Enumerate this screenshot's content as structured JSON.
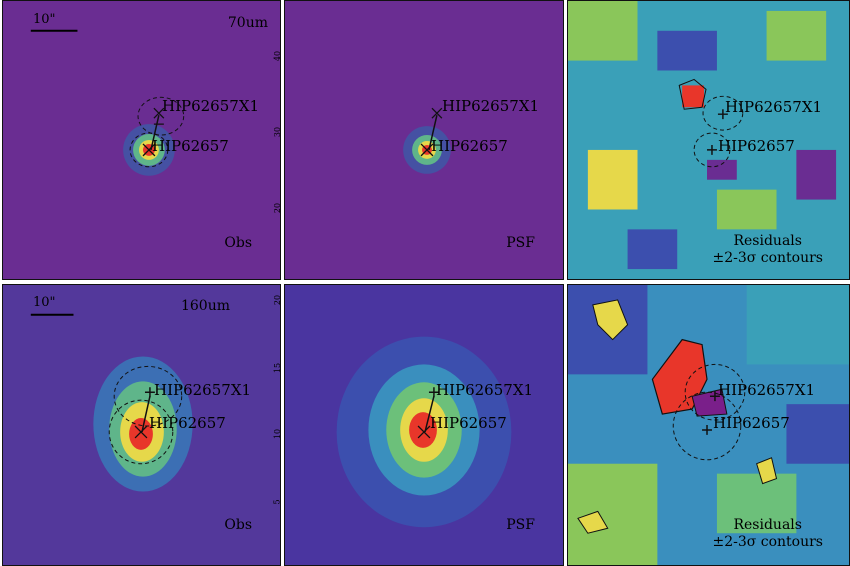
{
  "rows": [
    {
      "band": "70um",
      "scale_label": "10\"",
      "obs_label": "Obs",
      "psf_label": "PSF",
      "sources": [
        "HIP62657X1",
        "HIP62657"
      ],
      "left_ticks": [
        "40",
        "30",
        "20"
      ],
      "residual_lines": [
        "Residuals",
        "±2-3σ contours"
      ]
    },
    {
      "band": "160um",
      "scale_label": "10\"",
      "obs_label": "Obs",
      "psf_label": "PSF",
      "sources": [
        "HIP62657X1",
        "HIP62657"
      ],
      "left_ticks": [
        "20",
        "15",
        "10",
        "5"
      ],
      "residual_lines": [
        "Residuals",
        "±2-3σ contours"
      ]
    }
  ],
  "colors": {
    "background_purple": "#6a2d92",
    "peak_red": "#e8362a",
    "yellow": "#e6d84a",
    "green": "#8ac65a",
    "teal": "#3aa0b8",
    "blue": "#3c4fae"
  }
}
